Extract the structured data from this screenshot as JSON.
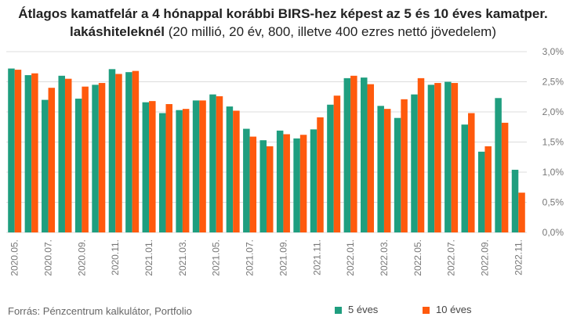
{
  "title": {
    "bold": "Átlagos kamatfelár a 4 hónappal korábbi BIRS-hez képest az 5 és 10 éves kamatper. lakáshiteleknél",
    "normal": "(20 millió, 20 év, 800, illetve 400 ezres nettó jövedelem)"
  },
  "source": "Forrás: Pénzcentrum kalkulátor, Portfolio",
  "colors": {
    "five": "#1f9e7f",
    "ten": "#ff5a0d",
    "grid": "#dcdcdc"
  },
  "chart_data": {
    "type": "bar",
    "categories": [
      "2020.05.",
      "2020.06.",
      "2020.07.",
      "2020.08.",
      "2020.09.",
      "2020.10.",
      "2020.11.",
      "2020.12.",
      "2021.01.",
      "2021.02.",
      "2021.03.",
      "2021.04.",
      "2021.05.",
      "2021.06.",
      "2021.07.",
      "2021.08.",
      "2021.09.",
      "2021.10.",
      "2021.11.",
      "2021.12.",
      "2022.01.",
      "2022.02.",
      "2022.03.",
      "2022.04.",
      "2022.05.",
      "2022.06.",
      "2022.07.",
      "2022.08.",
      "2022.09.",
      "2022.10.",
      "2022.11."
    ],
    "x_tick_labels": [
      "2020.05.",
      "2020.07.",
      "2020.09.",
      "2020.11.",
      "2021.01.",
      "2021.03.",
      "2021.05.",
      "2021.07.",
      "2021.09.",
      "2021.11.",
      "2022.01.",
      "2022.03.",
      "2022.05.",
      "2022.07.",
      "2022.09.",
      "2022.11."
    ],
    "series": [
      {
        "name": "5 éves",
        "values": [
          2.72,
          2.61,
          2.2,
          2.6,
          2.22,
          2.45,
          2.71,
          2.66,
          2.16,
          1.98,
          2.03,
          2.19,
          2.29,
          2.09,
          1.72,
          1.53,
          1.69,
          1.56,
          1.71,
          2.12,
          2.56,
          2.57,
          2.1,
          1.9,
          2.29,
          2.45,
          2.5,
          1.79,
          1.34,
          2.23,
          1.04
        ]
      },
      {
        "name": "10 éves",
        "values": [
          2.7,
          2.64,
          2.4,
          2.55,
          2.42,
          2.48,
          2.63,
          2.68,
          2.18,
          2.13,
          2.05,
          2.19,
          2.26,
          2.02,
          1.59,
          1.43,
          1.63,
          1.62,
          1.91,
          2.27,
          2.6,
          2.46,
          2.05,
          2.21,
          2.56,
          2.48,
          2.48,
          1.98,
          1.43,
          1.82,
          0.66
        ]
      }
    ],
    "ylim": [
      0,
      3
    ],
    "y_ticks": [
      "0,0%",
      "0,5%",
      "1,0%",
      "1,5%",
      "2,0%",
      "2,5%",
      "3,0%"
    ],
    "y_axis_side": "right",
    "grid": true,
    "legend": "bottom-right"
  }
}
